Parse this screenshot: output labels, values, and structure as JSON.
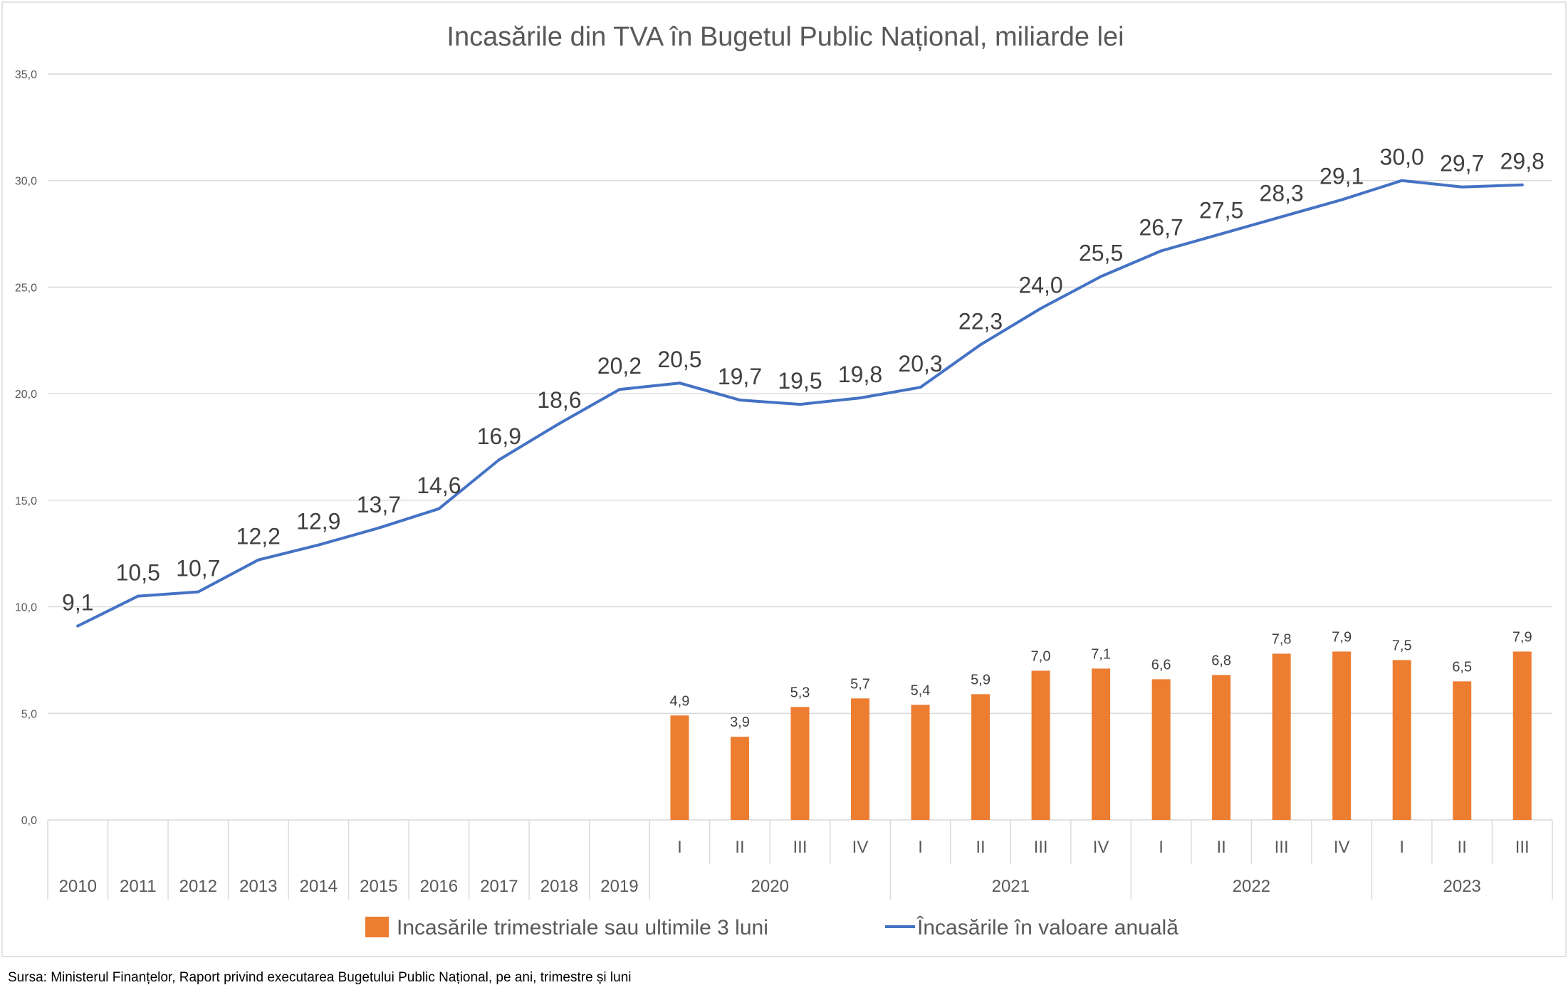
{
  "chart_data": {
    "type": "line",
    "title": "Incasările din TVA în Bugetul Public Național, miliarde lei",
    "xlabel": "",
    "ylabel": "",
    "categories": [
      "2010",
      "2011",
      "2012",
      "2013",
      "2014",
      "2015",
      "2016",
      "2017",
      "2018",
      "2019",
      "I",
      "II",
      "III",
      "IV",
      "I",
      "II",
      "III",
      "IV",
      "I",
      "II",
      "III",
      "IV",
      "I",
      "II",
      "III"
    ],
    "category_groups": [
      {
        "label": "2020",
        "first": 10,
        "count": 4
      },
      {
        "label": "2021",
        "first": 14,
        "count": 4
      },
      {
        "label": "2022",
        "first": 18,
        "count": 4
      },
      {
        "label": "2023",
        "first": 22,
        "count": 3
      }
    ],
    "ylim": [
      0,
      35
    ],
    "y_tick_labels": [
      "0,0",
      "5,0",
      "10,0",
      "15,0",
      "20,0",
      "25,0",
      "30,0",
      "35,0"
    ],
    "grid": true,
    "legend": "bottom",
    "series": [
      {
        "name": "Incasările trimestriale sau ultimile 3 luni",
        "type": "bar",
        "color": "#ED7D31",
        "values": [
          null,
          null,
          null,
          null,
          null,
          null,
          null,
          null,
          null,
          null,
          4.9,
          3.9,
          5.3,
          5.7,
          5.4,
          5.9,
          7.0,
          7.1,
          6.6,
          6.8,
          7.8,
          7.9,
          7.5,
          6.5,
          7.9
        ]
      },
      {
        "name": "Încasările în valoare anuală",
        "type": "line",
        "color": "#4472C4",
        "values": [
          9.1,
          10.5,
          10.7,
          12.2,
          12.9,
          13.7,
          14.6,
          16.9,
          18.6,
          20.2,
          20.5,
          19.7,
          19.5,
          19.8,
          20.3,
          22.3,
          24.0,
          25.5,
          26.7,
          27.5,
          28.3,
          29.1,
          30.0,
          29.7,
          29.8
        ]
      }
    ]
  },
  "source": "Sursa: Ministerul Finanțelor, Raport privind executarea Bugetului Public Național, pe ani, trimestre și luni"
}
